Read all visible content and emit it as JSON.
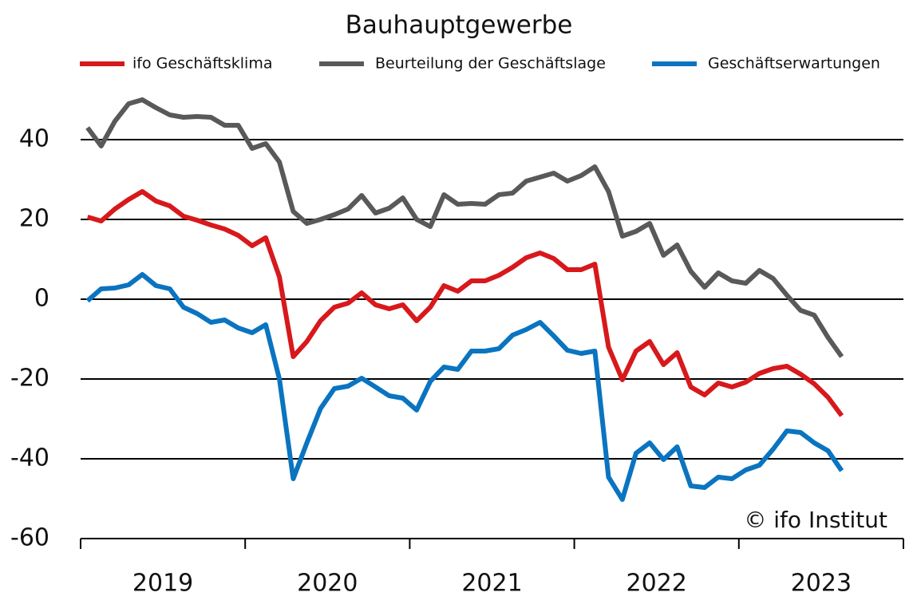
{
  "chart_data": {
    "type": "line",
    "title": "Bauhauptgewerbe",
    "credit": "© ifo Institut",
    "x": [
      2019.042,
      2019.125,
      2019.208,
      2019.292,
      2019.375,
      2019.458,
      2019.542,
      2019.625,
      2019.708,
      2019.792,
      2019.875,
      2019.958,
      2020.042,
      2020.125,
      2020.208,
      2020.292,
      2020.375,
      2020.458,
      2020.542,
      2020.625,
      2020.708,
      2020.792,
      2020.875,
      2020.958,
      2021.042,
      2021.125,
      2021.208,
      2021.292,
      2021.375,
      2021.458,
      2021.542,
      2021.625,
      2021.708,
      2021.792,
      2021.875,
      2021.958,
      2022.042,
      2022.125,
      2022.208,
      2022.292,
      2022.375,
      2022.458,
      2022.542,
      2022.625,
      2022.708,
      2022.792,
      2022.875,
      2022.958,
      2023.042,
      2023.125,
      2023.208,
      2023.292,
      2023.375,
      2023.458,
      2023.542,
      2023.625
    ],
    "xlim": [
      2019,
      2024
    ],
    "xticks": [
      2019,
      2020,
      2021,
      2022,
      2023,
      2024
    ],
    "x_labels": [
      "2019",
      "2020",
      "2021",
      "2022",
      "2023"
    ],
    "ylim": [
      -60,
      55
    ],
    "yticks": [
      -60,
      -40,
      -20,
      0,
      20,
      40
    ],
    "grid": true,
    "legend": "top",
    "series": [
      {
        "name": "ifo Geschäftsklima",
        "color": "#d7191c",
        "values": [
          20.6,
          19.6,
          22.6,
          25,
          27,
          24.6,
          23.4,
          20.8,
          19.8,
          18.6,
          17.6,
          16,
          13.4,
          15.4,
          5.6,
          -14.4,
          -10.6,
          -5.4,
          -2,
          -1,
          1.6,
          -1.4,
          -2.4,
          -1.4,
          -5.4,
          -2,
          3.4,
          2,
          4.6,
          4.6,
          6,
          8,
          10.4,
          11.6,
          10.2,
          7.4,
          7.4,
          8.8,
          -12,
          -20.2,
          -13,
          -10.6,
          -16.4,
          -13.4,
          -22,
          -24,
          -21,
          -22,
          -20.8,
          -18.6,
          -17.4,
          -16.8,
          -18.8,
          -21.2,
          -24.6,
          -29.2
        ]
      },
      {
        "name": "Beurteilung der Geschäftslage",
        "color": "#595959",
        "values": [
          43,
          38.4,
          44.6,
          49,
          50,
          48,
          46.2,
          45.6,
          45.8,
          45.6,
          43.6,
          43.6,
          37.8,
          39,
          34.4,
          22,
          19,
          20,
          21.2,
          22.6,
          26,
          21.6,
          22.8,
          25.4,
          20,
          18.2,
          26.2,
          23.8,
          24,
          23.8,
          26.2,
          26.6,
          29.6,
          30.6,
          31.6,
          29.6,
          31,
          33.2,
          27,
          15.8,
          17,
          19,
          11,
          13.6,
          7,
          3,
          6.6,
          4.6,
          4,
          7.2,
          5.2,
          1,
          -2.8,
          -4,
          -9.6,
          -14.4
        ]
      },
      {
        "name": "Geschäftserwartungen",
        "color": "#0a74c0",
        "values": [
          -0.4,
          2.6,
          2.8,
          3.6,
          6.2,
          3.4,
          2.6,
          -2,
          -3.6,
          -5.8,
          -5.2,
          -7.2,
          -8.4,
          -6.4,
          -20,
          -45,
          -36,
          -27.4,
          -22.4,
          -21.8,
          -19.8,
          -22,
          -24.2,
          -24.8,
          -27.8,
          -20.6,
          -17,
          -17.6,
          -13,
          -13,
          -12.4,
          -9,
          -7.6,
          -5.8,
          -9.2,
          -12.8,
          -13.6,
          -13,
          -44.6,
          -50.2,
          -38.6,
          -36,
          -40.2,
          -37,
          -46.8,
          -47.2,
          -44.6,
          -45,
          -42.8,
          -41.6,
          -37.6,
          -33,
          -33.4,
          -36,
          -38,
          -43
        ]
      }
    ]
  }
}
